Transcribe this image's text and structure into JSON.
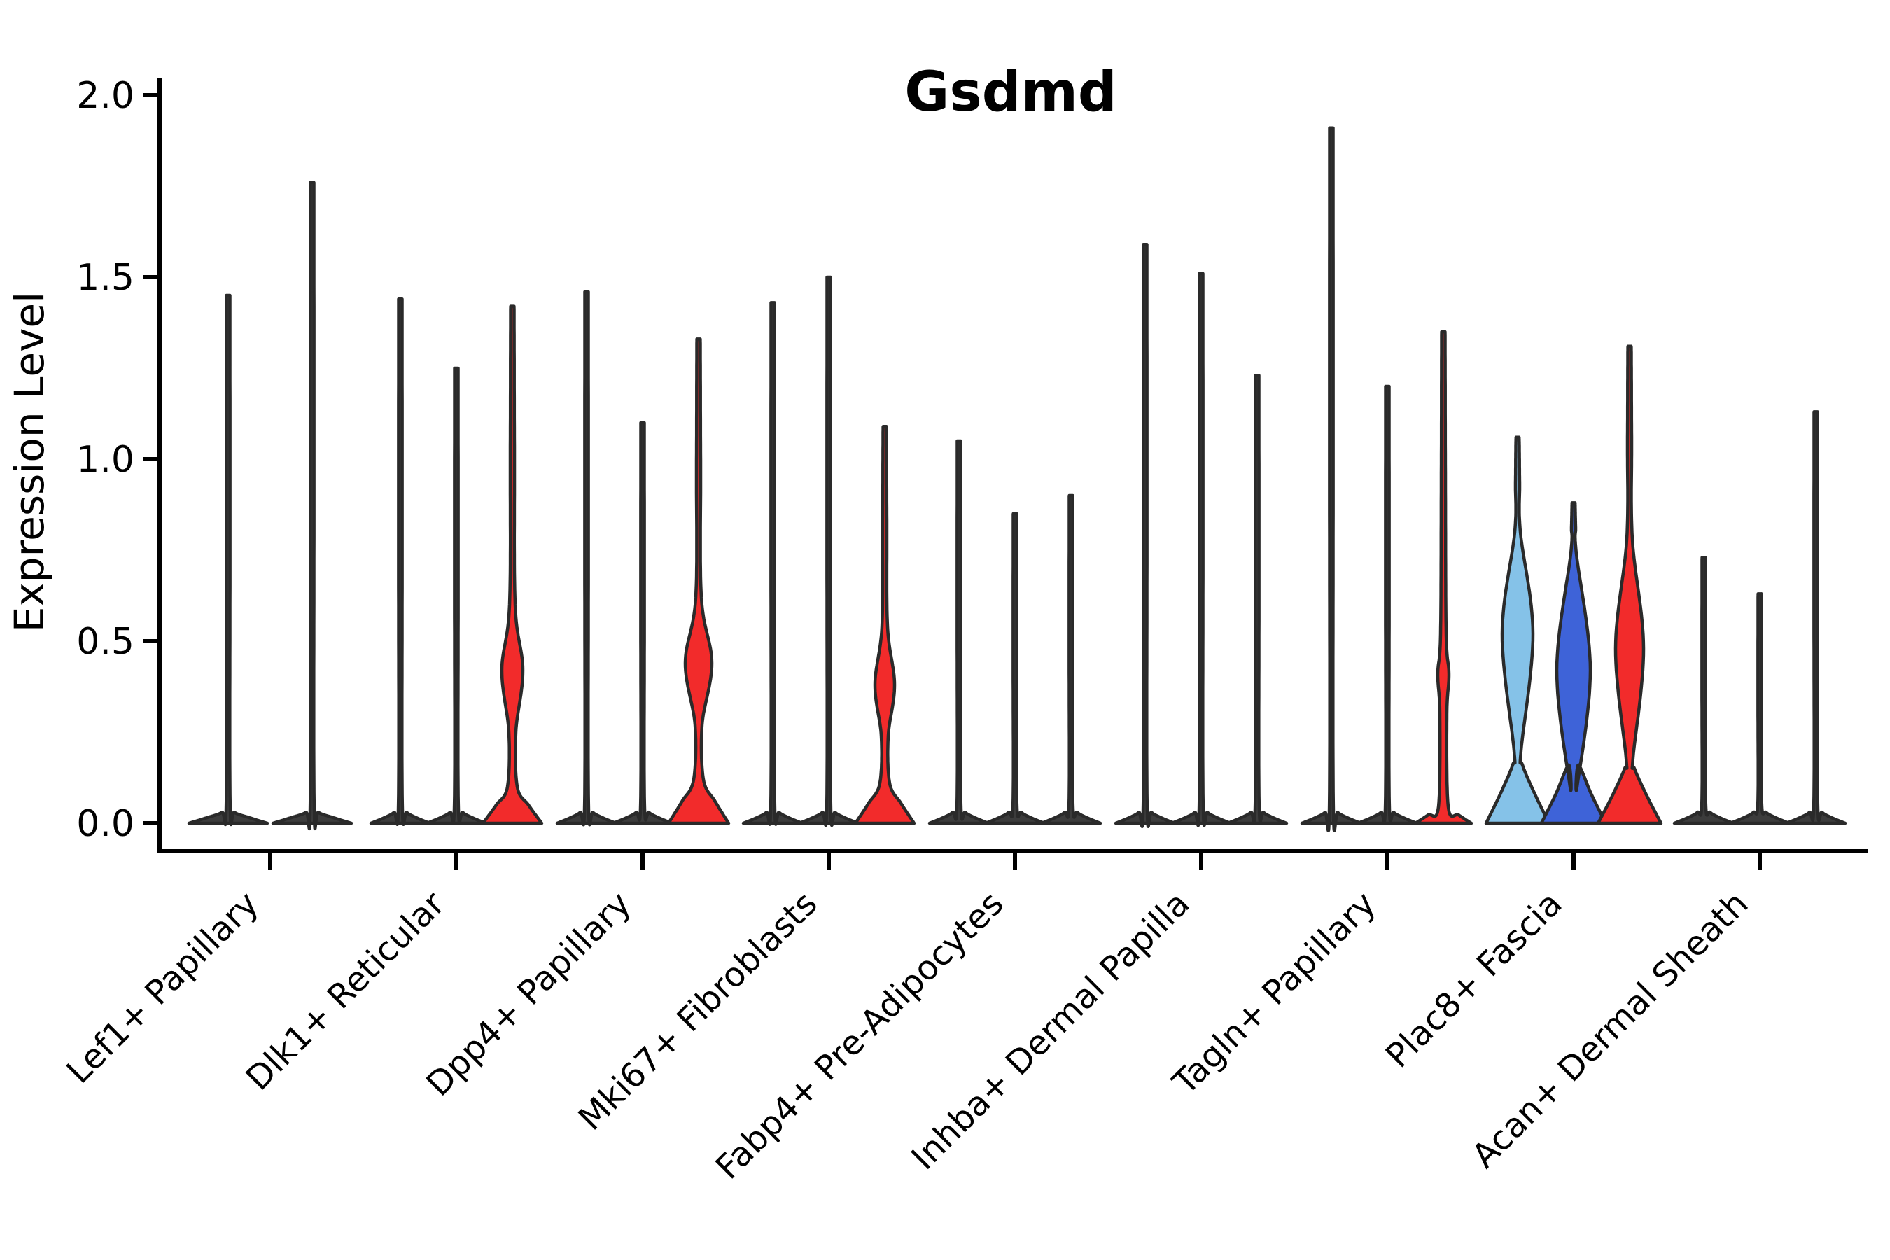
{
  "page": {
    "background": "#ffffff"
  },
  "chart_data": {
    "type": "violin",
    "title": "Gsdmd",
    "xlabel": "",
    "ylabel": "Expression Level",
    "ylim": [
      0,
      2.0
    ],
    "ytick_labels": [
      "0.0",
      "0.5",
      "1.0",
      "1.5",
      "2.0"
    ],
    "ytick_values": [
      0,
      0.5,
      1.0,
      1.5,
      2.0
    ],
    "grid": "off",
    "legend": "none",
    "palette": {
      "plain": "#3C3C3C",
      "lightblue": "#85C2E8",
      "blue": "#3E63D8",
      "red": "#F22B2B",
      "outline": "#2A2A2A",
      "axis": "#000000"
    },
    "categories": [
      "Lef1+ Papillary",
      "Dlk1+ Reticular",
      "Dpp4+ Papillary",
      "Mki67+ Fibroblasts",
      "Fabp4+ Pre-Adipocytes",
      "Inhba+ Dermal Papilla",
      "Tagln+ Papillary",
      "Plac8+ Fascia",
      "Acan+ Dermal Sheath"
    ],
    "groups": [
      {
        "label": "Lef1+ Papillary",
        "violins": [
          {
            "fill": "plain",
            "tip": 1.45,
            "base": {
              "h": 0.03,
              "hw": 56
            }
          },
          {
            "fill": "plain",
            "tip": 1.76,
            "base": {
              "h": 0.03,
              "hw": 56
            }
          }
        ]
      },
      {
        "label": "Dlk1+ Reticular",
        "violins": [
          {
            "fill": "plain",
            "tip": 1.44,
            "base": {
              "h": 0.03,
              "hw": 42
            }
          },
          {
            "fill": "plain",
            "tip": 1.25,
            "base": {
              "h": 0.03,
              "hw": 42
            }
          },
          {
            "fill": "red",
            "tip": 1.42,
            "base": {
              "h": 0.1,
              "hw": 42
            },
            "bulge": {
              "lo": 0.25,
              "peak": 0.42,
              "hi": 0.6,
              "hw": 15
            }
          }
        ]
      },
      {
        "label": "Dpp4+ Papillary",
        "violins": [
          {
            "fill": "plain",
            "tip": 1.46,
            "base": {
              "h": 0.03,
              "hw": 42
            }
          },
          {
            "fill": "plain",
            "tip": 1.1,
            "base": {
              "h": 0.03,
              "hw": 42
            }
          },
          {
            "fill": "red",
            "tip": 1.33,
            "base": {
              "h": 0.12,
              "hw": 43
            },
            "bulge": {
              "lo": 0.27,
              "peak": 0.44,
              "hi": 0.62,
              "hw": 19
            }
          }
        ]
      },
      {
        "label": "Mki67+ Fibroblasts",
        "violins": [
          {
            "fill": "plain",
            "tip": 1.43,
            "base": {
              "h": 0.03,
              "hw": 42
            }
          },
          {
            "fill": "plain",
            "tip": 1.5,
            "base": {
              "h": 0.03,
              "hw": 42
            }
          },
          {
            "fill": "red",
            "tip": 1.09,
            "base": {
              "h": 0.11,
              "hw": 42
            },
            "bulge": {
              "lo": 0.24,
              "peak": 0.38,
              "hi": 0.54,
              "hw": 14
            }
          }
        ]
      },
      {
        "label": "Fabp4+ Pre-Adipocytes",
        "violins": [
          {
            "fill": "plain",
            "tip": 1.05,
            "base": {
              "h": 0.03,
              "hw": 42
            }
          },
          {
            "fill": "plain",
            "tip": 0.85,
            "base": {
              "h": 0.03,
              "hw": 42
            }
          },
          {
            "fill": "plain",
            "tip": 0.9,
            "base": {
              "h": 0.03,
              "hw": 42
            }
          }
        ]
      },
      {
        "label": "Inhba+ Dermal Papilla",
        "violins": [
          {
            "fill": "plain",
            "tip": 1.59,
            "base": {
              "h": 0.03,
              "hw": 42
            }
          },
          {
            "fill": "plain",
            "tip": 1.51,
            "base": {
              "h": 0.03,
              "hw": 42
            }
          },
          {
            "fill": "plain",
            "tip": 1.23,
            "base": {
              "h": 0.03,
              "hw": 42
            }
          }
        ]
      },
      {
        "label": "Tagln+ Papillary",
        "violins": [
          {
            "fill": "plain",
            "tip": 1.91,
            "base": {
              "h": 0.03,
              "hw": 42
            }
          },
          {
            "fill": "plain",
            "tip": 1.2,
            "base": {
              "h": 0.03,
              "hw": 42
            }
          },
          {
            "fill": "red",
            "tip": 1.35,
            "base": {
              "h": 0.045,
              "hw": 40
            },
            "bulge": {
              "lo": 0.3,
              "peak": 0.41,
              "hi": 0.52,
              "hw": 8
            }
          }
        ]
      },
      {
        "label": "Plac8+ Fascia",
        "violins": [
          {
            "fill": "lightblue",
            "tip": 1.06,
            "base": {
              "h": 0.16,
              "hw": 45
            },
            "bulge": {
              "lo": 0.2,
              "peak": 0.52,
              "hi": 0.8,
              "hw": 22
            }
          },
          {
            "fill": "blue",
            "tip": 0.88,
            "base": {
              "h": 0.16,
              "hw": 46
            },
            "bulge": {
              "lo": 0.1,
              "peak": 0.42,
              "hi": 0.74,
              "hw": 24
            }
          },
          {
            "fill": "red",
            "tip": 1.31,
            "base": {
              "h": 0.15,
              "hw": 45
            },
            "bulge": {
              "lo": 0.18,
              "peak": 0.48,
              "hi": 0.78,
              "hw": 20
            }
          }
        ]
      },
      {
        "label": "Acan+ Dermal Sheath",
        "violins": [
          {
            "fill": "plain",
            "tip": 0.73,
            "base": {
              "h": 0.03,
              "hw": 42
            }
          },
          {
            "fill": "plain",
            "tip": 0.63,
            "base": {
              "h": 0.03,
              "hw": 42
            }
          },
          {
            "fill": "plain",
            "tip": 1.13,
            "base": {
              "h": 0.03,
              "hw": 42
            }
          }
        ]
      }
    ]
  }
}
